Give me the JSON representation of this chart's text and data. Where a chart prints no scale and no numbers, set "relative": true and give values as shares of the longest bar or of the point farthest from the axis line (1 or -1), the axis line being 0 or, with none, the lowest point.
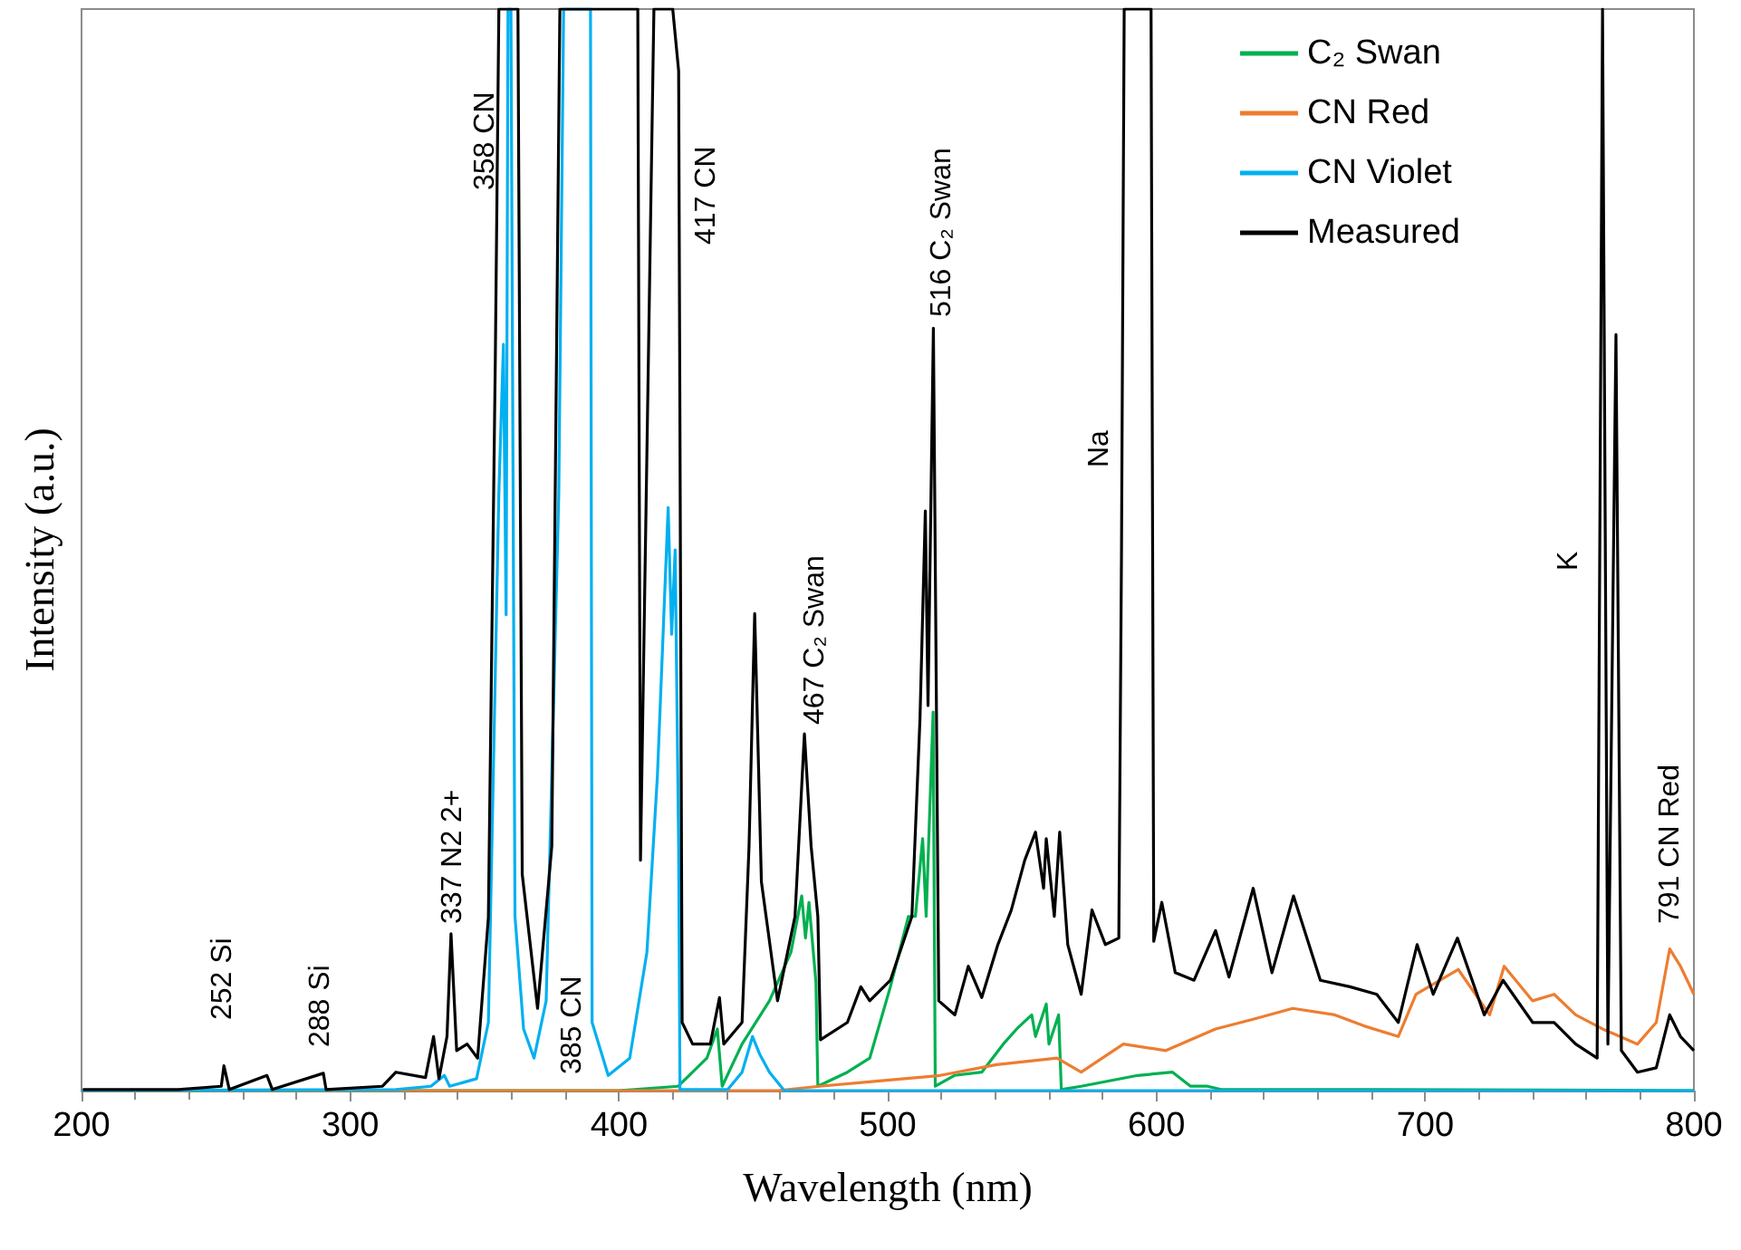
{
  "chart_data": {
    "type": "line",
    "relative": true,
    "xlabel": "Wavelength (nm)",
    "ylabel": "Intensity (a.u.)",
    "xlim": [
      200,
      800
    ],
    "xticks": [
      200,
      300,
      400,
      500,
      600,
      700,
      800
    ],
    "legend": "top right",
    "series": [
      {
        "name": "C₂ Swan",
        "color": "#00b050",
        "x": [
          200,
          400,
          422,
          432.7,
          436.6,
          438.4,
          445.8,
          456,
          464,
          468,
          469.4,
          470.7,
          473.3,
          474,
          485,
          493.3,
          501,
          507.7,
          510.3,
          513,
          514.3,
          516.9,
          517.7,
          524.8,
          535,
          543,
          548,
          553.6,
          555,
          559,
          560,
          563.6,
          564.6,
          572,
          593,
          606,
          612.7,
          619,
          624,
          677,
          800
        ],
        "values": [
          0,
          0,
          0.004,
          0.03,
          0.057,
          0.004,
          0.043,
          0.083,
          0.128,
          0.18,
          0.141,
          0.174,
          0.1,
          0.004,
          0.017,
          0.03,
          0.096,
          0.161,
          0.161,
          0.233,
          0.161,
          0.35,
          0.004,
          0.014,
          0.017,
          0.043,
          0.057,
          0.07,
          0.05,
          0.08,
          0.043,
          0.07,
          0.001,
          0.004,
          0.014,
          0.017,
          0.004,
          0.004,
          0.001,
          0.001,
          0
        ]
      },
      {
        "name": "CN Red",
        "color": "#ed7d31",
        "x": [
          200,
          380,
          459,
          474.6,
          493,
          519.5,
          540.5,
          563,
          572,
          587.7,
          603.5,
          622,
          636,
          650.7,
          666.4,
          677,
          690,
          696.6,
          712.3,
          724,
          729.4,
          740,
          748,
          756,
          766,
          779,
          786,
          791,
          795,
          800
        ],
        "values": [
          0,
          0,
          0,
          0.004,
          0.008,
          0.014,
          0.024,
          0.03,
          0.017,
          0.043,
          0.037,
          0.057,
          0.066,
          0.076,
          0.07,
          0.06,
          0.05,
          0.089,
          0.112,
          0.07,
          0.115,
          0.083,
          0.089,
          0.07,
          0.057,
          0.043,
          0.063,
          0.131,
          0.115,
          0.089
        ]
      },
      {
        "name": "CN Violet",
        "color": "#00b0f0",
        "x": [
          200,
          317,
          330,
          335,
          337,
          347,
          351.4,
          355.3,
          357,
          358,
          358.7,
          359.8,
          361.3,
          364.5,
          368.4,
          372.9,
          377.6,
          379.4,
          389.4,
          390,
          396,
          404,
          410.4,
          414.3,
          418.3,
          419.6,
          420.9,
          422.2,
          422.7,
          440.5,
          445.8,
          449.7,
          452.3,
          456,
          461.5,
          800
        ],
        "values": [
          0,
          0.001,
          0.004,
          0.014,
          0.004,
          0.011,
          0.063,
          0.552,
          0.69,
          0.44,
          1,
          1,
          0.161,
          0.057,
          0.03,
          0.083,
          0.552,
          1,
          1,
          0.063,
          0.014,
          0.03,
          0.128,
          0.291,
          0.539,
          0.422,
          0.5,
          0.226,
          0.001,
          0.001,
          0.017,
          0.05,
          0.034,
          0.017,
          0,
          0
        ]
      },
      {
        "name": "Measured",
        "color": "#000000",
        "x": [
          200.5,
          236,
          252,
          253,
          255,
          269,
          271,
          290,
          291,
          312,
          317,
          328,
          331,
          333,
          336,
          337.5,
          339.6,
          343.5,
          347.4,
          351.4,
          354,
          355.3,
          362.4,
          364,
          369.7,
          375,
          378,
          407,
          408,
          413,
          420,
          422.2,
          423.5,
          427.4,
          434,
          437.4,
          439,
          445.8,
          448.4,
          450.5,
          453,
          459,
          465.5,
          469,
          471.5,
          474,
          475,
          485,
          490,
          493.3,
          501,
          509,
          512,
          514,
          515,
          517,
          519,
          525,
          530,
          535,
          541,
          546,
          551,
          555,
          558,
          559,
          562,
          564,
          567,
          572,
          576,
          581,
          586,
          587,
          588,
          598,
          599,
          602,
          607,
          614,
          622,
          627,
          636,
          643,
          651,
          661,
          672,
          682,
          690,
          697,
          703,
          712,
          722,
          729,
          740,
          748,
          756,
          764,
          766,
          768,
          771,
          773,
          779,
          786,
          791,
          795,
          800
        ],
        "values": [
          0.001,
          0.001,
          0.004,
          0.023,
          0.001,
          0.014,
          0.001,
          0.016,
          0.001,
          0.004,
          0.017,
          0.012,
          0.05,
          0.011,
          0.05,
          0.145,
          0.037,
          0.043,
          0.03,
          0.16,
          0.68,
          1,
          1,
          0.2,
          0.076,
          0.226,
          1,
          1,
          0.213,
          1,
          1,
          0.943,
          0.063,
          0.043,
          0.043,
          0.086,
          0.043,
          0.063,
          0.226,
          0.441,
          0.193,
          0.083,
          0.161,
          0.33,
          0.226,
          0.161,
          0.047,
          0.063,
          0.096,
          0.083,
          0.102,
          0.161,
          0.343,
          0.536,
          0.356,
          0.705,
          0.083,
          0.07,
          0.115,
          0.086,
          0.135,
          0.167,
          0.213,
          0.239,
          0.187,
          0.233,
          0.161,
          0.239,
          0.135,
          0.089,
          0.167,
          0.135,
          0.141,
          0.5,
          1,
          1,
          0.138,
          0.174,
          0.109,
          0.102,
          0.148,
          0.105,
          0.187,
          0.109,
          0.18,
          0.102,
          0.096,
          0.089,
          0.063,
          0.135,
          0.089,
          0.141,
          0.07,
          0.102,
          0.063,
          0.063,
          0.043,
          0.03,
          1,
          0.043,
          0.699,
          0.037,
          0.017,
          0.021,
          0.07,
          0.05,
          0.037
        ]
      }
    ],
    "annotations": [
      "252 Si",
      "288 Si",
      "337 N2 2+",
      "358 CN",
      "385 CN",
      "417 CN",
      "467 C₂ Swan",
      "516 C₂ Swan",
      "Na",
      "K",
      "791 CN Red"
    ]
  }
}
